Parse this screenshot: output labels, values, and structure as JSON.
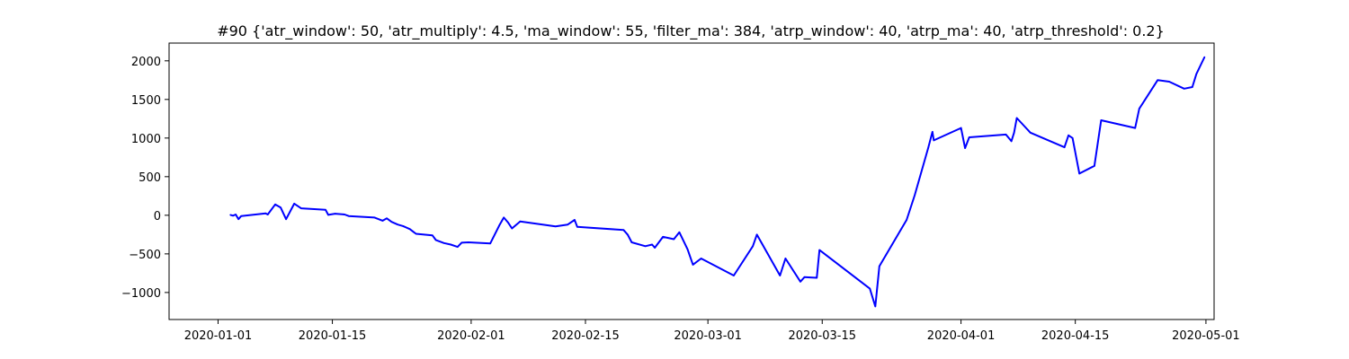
{
  "chart_data": {
    "type": "line",
    "title": "#90 {'atr_window': 50, 'atr_multiply': 4.5, 'ma_window': 55, 'filter_ma': 384, 'atrp_window': 40, 'atrp_ma': 40, 'atrp_threshold': 0.2}",
    "xlabel": "",
    "ylabel": "",
    "x_axis_type": "date",
    "xlim": [
      "2019-12-26",
      "2020-05-02"
    ],
    "ylim": [
      -1350,
      2230
    ],
    "grid": false,
    "legend": "none",
    "color": "#0000ff",
    "x_ticks": [
      {
        "date": "2020-01-01",
        "label": "2020-01-01"
      },
      {
        "date": "2020-01-15",
        "label": "2020-01-15"
      },
      {
        "date": "2020-02-01",
        "label": "2020-02-01"
      },
      {
        "date": "2020-02-15",
        "label": "2020-02-15"
      },
      {
        "date": "2020-03-01",
        "label": "2020-03-01"
      },
      {
        "date": "2020-03-15",
        "label": "2020-03-15"
      },
      {
        "date": "2020-04-01",
        "label": "2020-04-01"
      },
      {
        "date": "2020-04-15",
        "label": "2020-04-15"
      },
      {
        "date": "2020-05-01",
        "label": "2020-05-01"
      }
    ],
    "y_ticks": [
      {
        "value": -1000,
        "label": "−1000"
      },
      {
        "value": -500,
        "label": "−500"
      },
      {
        "value": 0,
        "label": "0"
      },
      {
        "value": 500,
        "label": "500"
      },
      {
        "value": 1000,
        "label": "1000"
      },
      {
        "value": 1500,
        "label": "1500"
      },
      {
        "value": 2000,
        "label": "2000"
      }
    ],
    "x": [
      "2020-01-02 12:00",
      "2020-01-02 20:00",
      "2020-01-03 04:00",
      "2020-01-03 12:00",
      "2020-01-03 20:00",
      "2020-01-06 20:00",
      "2020-01-07 02:00",
      "2020-01-08 00:00",
      "2020-01-08 16:00",
      "2020-01-09 08:00",
      "2020-01-10 08:00",
      "2020-01-11 04:00",
      "2020-01-14 04:00",
      "2020-01-14 12:00",
      "2020-01-15 08:00",
      "2020-01-16 12:00",
      "2020-01-17 00:00",
      "2020-01-20 04:00",
      "2020-01-21 04:00",
      "2020-01-21 16:00",
      "2020-01-22 06:00",
      "2020-01-23 00:00",
      "2020-01-23 16:00",
      "2020-01-24 12:00",
      "2020-01-25 00:00",
      "2020-01-25 06:00",
      "2020-01-27 06:00",
      "2020-01-27 16:00",
      "2020-01-28 16:00",
      "2020-01-29 12:00",
      "2020-01-30 08:00",
      "2020-01-30 20:00",
      "2020-01-31 16:00",
      "2020-02-03 08:00",
      "2020-02-04 12:00",
      "2020-02-05 00:00",
      "2020-02-05 12:00",
      "2020-02-06 00:00",
      "2020-02-07 00:00",
      "2020-02-11 08:00",
      "2020-02-12 20:00",
      "2020-02-13 16:00",
      "2020-02-14 00:00",
      "2020-02-19 16:00",
      "2020-02-20 04:00",
      "2020-02-20 16:00",
      "2020-02-22 08:00",
      "2020-02-23 04:00",
      "2020-02-23 12:00",
      "2020-02-24 12:00",
      "2020-02-25 20:00",
      "2020-02-26 12:00",
      "2020-02-27 12:00",
      "2020-02-28 04:00",
      "2020-02-29 04:00",
      "2020-03-04 04:00",
      "2020-03-06 12:00",
      "2020-03-07 00:00",
      "2020-03-09 20:00",
      "2020-03-10 12:00",
      "2020-03-12 08:00",
      "2020-03-12 20:00",
      "2020-03-13 12:00",
      "2020-03-14 08:00",
      "2020-03-14 16:00",
      "2020-03-20 20:00",
      "2020-03-21 12:00",
      "2020-03-22 00:00",
      "2020-03-25 08:00",
      "2020-03-26 08:00",
      "2020-03-28 00:00",
      "2020-03-28 12:00",
      "2020-03-28 16:00",
      "2020-04-01 00:00",
      "2020-04-01 12:00",
      "2020-04-02 00:00",
      "2020-04-06 12:00",
      "2020-04-07 04:00",
      "2020-04-07 12:00",
      "2020-04-07 20:00",
      "2020-04-09 12:00",
      "2020-04-13 16:00",
      "2020-04-14 04:00",
      "2020-04-14 16:00",
      "2020-04-15 12:00",
      "2020-04-17 08:00",
      "2020-04-18 04:00",
      "2020-04-22 08:00",
      "2020-04-22 20:00",
      "2020-04-25 02:00",
      "2020-04-26 12:00",
      "2020-04-28 08:00",
      "2020-04-29 08:00",
      "2020-04-29 20:00",
      "2020-04-30 20:00"
    ],
    "values": [
      5,
      -5,
      10,
      -50,
      -10,
      25,
      10,
      140,
      100,
      -50,
      150,
      90,
      70,
      5,
      20,
      10,
      -10,
      -30,
      -70,
      -40,
      -85,
      -120,
      -140,
      -180,
      -220,
      -240,
      -260,
      -320,
      -360,
      -380,
      -410,
      -355,
      -350,
      -365,
      -120,
      -30,
      -90,
      -170,
      -80,
      -145,
      -120,
      -60,
      -150,
      -190,
      -250,
      -350,
      -400,
      -380,
      -420,
      -280,
      -310,
      -220,
      -440,
      -640,
      -560,
      -780,
      -400,
      -250,
      -780,
      -560,
      -860,
      -800,
      -805,
      -810,
      -450,
      -950,
      -1180,
      -660,
      -60,
      260,
      880,
      1080,
      970,
      1130,
      870,
      1010,
      1045,
      960,
      1070,
      1260,
      1070,
      880,
      1035,
      1000,
      540,
      640,
      1230,
      1130,
      1380,
      1750,
      1730,
      1640,
      1660,
      1830,
      2050
    ]
  }
}
